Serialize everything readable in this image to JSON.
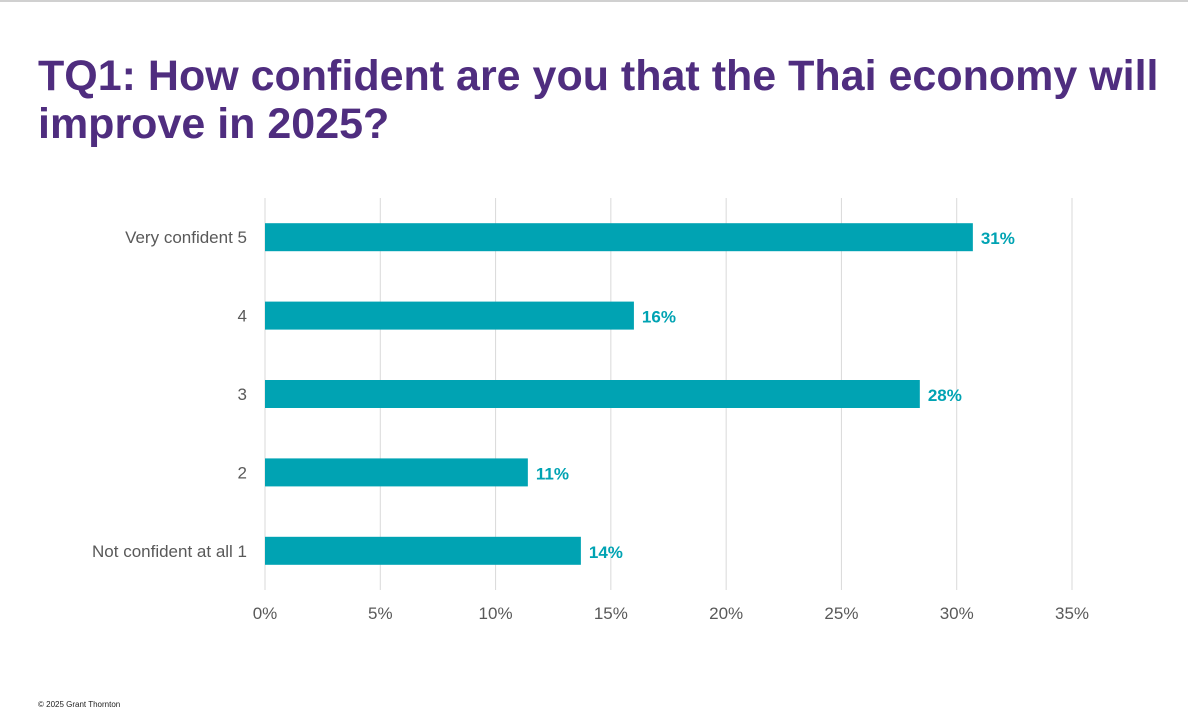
{
  "slide": {
    "title": "TQ1: How confident are you that the Thai economy will improve in 2025?",
    "footer": "© 2025  Grant Thornton"
  },
  "colors": {
    "title": "#4f2d7f",
    "bar": "#00a3b3",
    "data_label": "#00a3b3",
    "gridline": "#d9d9d9",
    "axis_text": "#595959"
  },
  "chart_data": {
    "type": "bar",
    "orientation": "horizontal",
    "categories": [
      "Very confident 5",
      "4",
      "3",
      "2",
      "Not confident at all 1"
    ],
    "values": [
      30.7,
      16.0,
      28.4,
      11.4,
      13.7
    ],
    "data_labels": [
      "31%",
      "16%",
      "28%",
      "11%",
      "14%"
    ],
    "xlim": [
      0,
      35
    ],
    "xticks": [
      0,
      5,
      10,
      15,
      20,
      25,
      30,
      35
    ],
    "xtick_labels": [
      "0%",
      "5%",
      "10%",
      "15%",
      "20%",
      "25%",
      "30%",
      "35%"
    ],
    "grid": "vertical",
    "legend": "none"
  }
}
